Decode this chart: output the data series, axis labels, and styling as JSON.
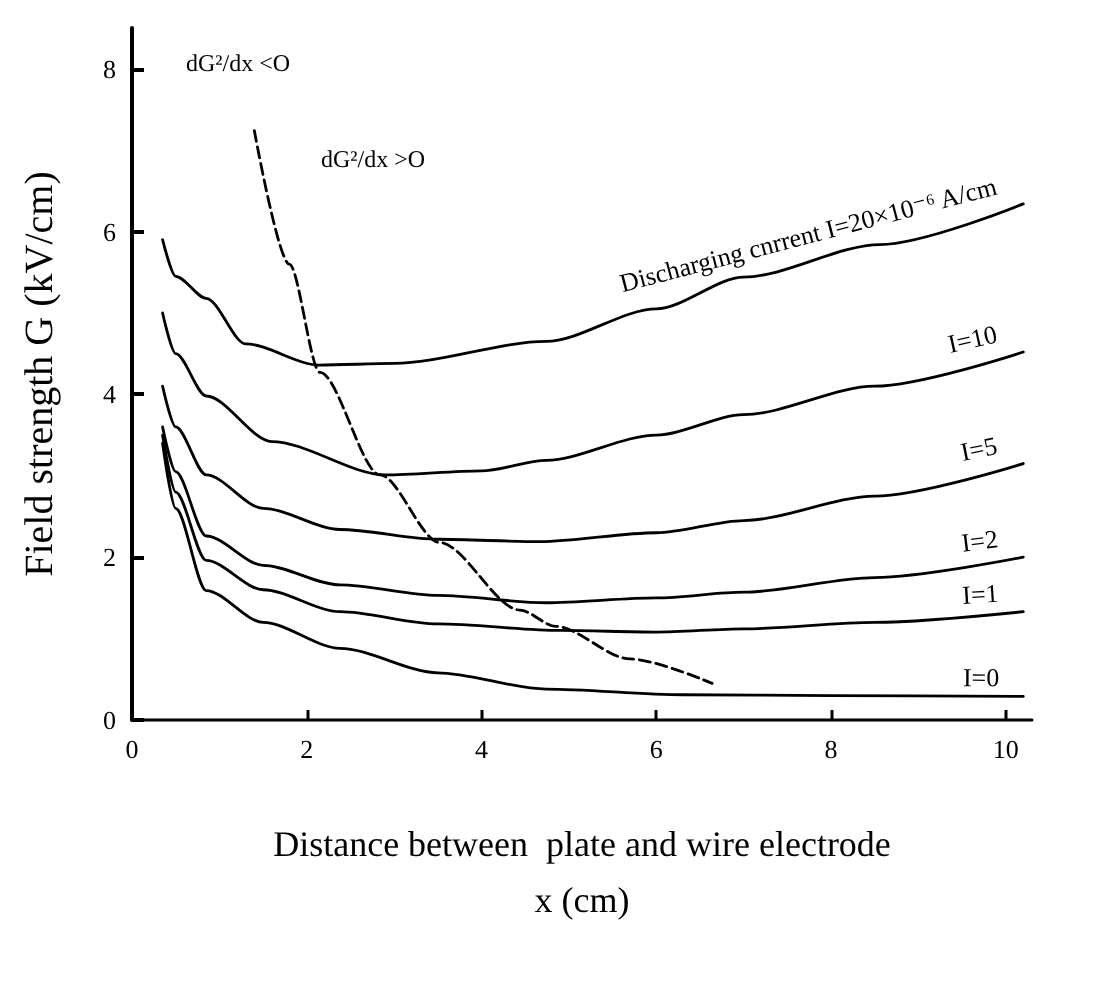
{
  "chart_data": {
    "type": "line",
    "xlabel": "Distance between  plate and wire electrode\nx (cm)",
    "ylabel": "Field strength G (kV/cm)",
    "xlim": [
      0,
      10.3
    ],
    "ylim": [
      0,
      8.5
    ],
    "xticks": [
      0,
      2,
      4,
      6,
      8,
      10
    ],
    "yticks": [
      0,
      2,
      4,
      6,
      8
    ],
    "grid": false,
    "legend": false,
    "marker": "none",
    "series": [
      {
        "name": "Discharging cnrrent I=20×10⁻⁶ A/cm",
        "color": "#000000",
        "x": [
          0.35,
          0.5,
          0.85,
          1.3,
          2.14,
          3,
          4.74,
          6,
          7,
          8.56,
          10.2
        ],
        "values": [
          5.9,
          5.45,
          5.18,
          4.62,
          4.36,
          4.38,
          4.65,
          5.05,
          5.44,
          5.84,
          6.34
        ]
      },
      {
        "name": "I=10",
        "color": "#000000",
        "x": [
          0.35,
          0.5,
          0.85,
          1.6,
          2.9,
          4,
          4.74,
          6,
          7,
          8.5,
          10.2
        ],
        "values": [
          5.0,
          4.5,
          3.98,
          3.42,
          3.01,
          3.06,
          3.19,
          3.5,
          3.75,
          4.1,
          4.52
        ]
      },
      {
        "name": "I=5",
        "color": "#000000",
        "x": [
          0.35,
          0.5,
          0.85,
          1.5,
          2.38,
          3.5,
          4.67,
          6,
          7,
          8.5,
          10.2
        ],
        "values": [
          4.1,
          3.6,
          3.01,
          2.6,
          2.34,
          2.22,
          2.19,
          2.3,
          2.45,
          2.75,
          3.15
        ]
      },
      {
        "name": "I=2",
        "color": "#000000",
        "x": [
          0.35,
          0.5,
          0.85,
          1.5,
          2.38,
          3.5,
          4.74,
          6,
          7,
          8.5,
          10.2
        ],
        "values": [
          3.6,
          3.05,
          2.26,
          1.9,
          1.66,
          1.53,
          1.44,
          1.5,
          1.57,
          1.75,
          2.0
        ]
      },
      {
        "name": "I=1",
        "color": "#000000",
        "x": [
          0.35,
          0.5,
          0.85,
          1.5,
          2.38,
          3.5,
          4.9,
          6,
          7,
          8.5,
          10.2
        ],
        "values": [
          3.5,
          2.8,
          1.96,
          1.6,
          1.33,
          1.18,
          1.1,
          1.08,
          1.12,
          1.2,
          1.33
        ]
      },
      {
        "name": "I=0",
        "color": "#000000",
        "x": [
          0.35,
          0.5,
          0.85,
          1.5,
          2.38,
          3.5,
          4.74,
          6.3,
          8,
          10.2
        ],
        "values": [
          3.4,
          2.6,
          1.59,
          1.2,
          0.88,
          0.58,
          0.38,
          0.31,
          0.3,
          0.29
        ]
      },
      {
        "color": "#000000",
        "line_style": "dashed",
        "x": [
          1.4,
          1.8,
          2.15,
          2.84,
          3.52,
          4.44,
          4.85,
          5.7,
          6.64
        ],
        "values": [
          7.24,
          5.6,
          4.27,
          3.01,
          2.18,
          1.35,
          1.15,
          0.75,
          0.45
        ]
      }
    ],
    "annotations": [
      "dG²/dx <O",
      "dG²/dx >O"
    ]
  }
}
